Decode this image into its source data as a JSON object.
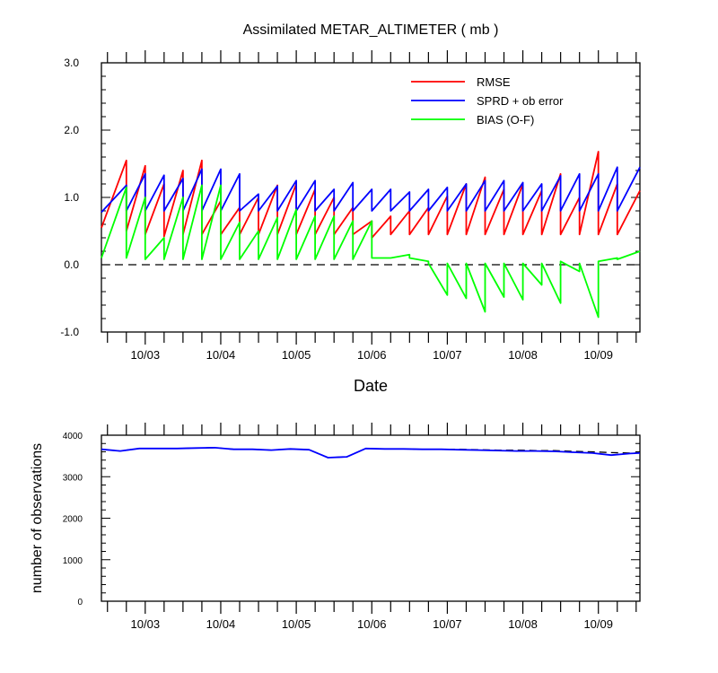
{
  "chart_data": [
    {
      "type": "line",
      "title": "Assimilated METAR_ALTIMETER ( mb )",
      "xlabel": "Date",
      "ylabel": "",
      "ylim": [
        -1.0,
        3.0
      ],
      "yticks": [
        -1.0,
        0.0,
        1.0,
        2.0,
        3.0
      ],
      "ytick_labels": [
        "-1.0",
        "0.0",
        "1.0",
        "2.0",
        "3.0"
      ],
      "xlim": [
        2.42,
        9.55
      ],
      "xticks": [
        3,
        4,
        5,
        6,
        7,
        8,
        9
      ],
      "xtick_labels": [
        "10/03",
        "10/04",
        "10/05",
        "10/06",
        "10/07",
        "10/08",
        "10/09"
      ],
      "reference_line": 0.0,
      "legend_position": "top-right",
      "series": [
        {
          "name": "RMSE",
          "color": "#ff0000",
          "x": [
            2.42,
            2.75,
            2.75,
            3.0,
            3.0,
            3.25,
            3.25,
            3.5,
            3.5,
            3.75,
            3.75,
            4.0,
            4.0,
            4.25,
            4.25,
            4.5,
            4.5,
            4.75,
            4.75,
            5.0,
            5.0,
            5.25,
            5.25,
            5.5,
            5.5,
            5.75,
            5.75,
            6.0,
            6.0,
            6.25,
            6.25,
            6.5,
            6.5,
            6.75,
            6.75,
            7.0,
            7.0,
            7.25,
            7.25,
            7.5,
            7.5,
            7.75,
            7.75,
            8.0,
            8.0,
            8.25,
            8.25,
            8.5,
            8.5,
            8.75,
            8.75,
            9.0,
            9.0,
            9.25,
            9.25,
            9.55
          ],
          "y": [
            0.55,
            1.55,
            0.5,
            1.47,
            0.45,
            1.2,
            0.42,
            1.4,
            0.45,
            1.55,
            0.45,
            0.95,
            0.45,
            0.85,
            0.45,
            1.0,
            0.45,
            1.18,
            0.45,
            1.2,
            0.45,
            1.12,
            0.45,
            1.0,
            0.45,
            0.85,
            0.45,
            0.65,
            0.4,
            0.72,
            0.45,
            0.8,
            0.45,
            0.85,
            0.45,
            1.02,
            0.45,
            1.2,
            0.45,
            1.3,
            0.45,
            1.12,
            0.45,
            1.2,
            0.45,
            1.1,
            0.45,
            1.35,
            0.45,
            1.0,
            0.45,
            1.68,
            0.45,
            1.2,
            0.45,
            1.1
          ]
        },
        {
          "name": "SPRD + ob error",
          "color": "#0000ff",
          "x": [
            2.42,
            2.75,
            2.75,
            3.0,
            3.0,
            3.25,
            3.25,
            3.5,
            3.5,
            3.75,
            3.75,
            4.0,
            4.0,
            4.25,
            4.25,
            4.5,
            4.5,
            4.75,
            4.75,
            5.0,
            5.0,
            5.25,
            5.25,
            5.5,
            5.5,
            5.75,
            5.75,
            6.0,
            6.0,
            6.25,
            6.25,
            6.5,
            6.5,
            6.75,
            6.75,
            7.0,
            7.0,
            7.25,
            7.25,
            7.5,
            7.5,
            7.75,
            7.75,
            8.0,
            8.0,
            8.25,
            8.25,
            8.5,
            8.5,
            8.75,
            8.75,
            9.0,
            9.0,
            9.25,
            9.25,
            9.55
          ],
          "y": [
            0.78,
            1.18,
            0.8,
            1.35,
            0.8,
            1.33,
            0.8,
            1.28,
            0.8,
            1.42,
            0.8,
            1.42,
            0.8,
            1.35,
            0.8,
            1.05,
            0.8,
            1.17,
            0.8,
            1.25,
            0.8,
            1.25,
            0.8,
            1.12,
            0.8,
            1.22,
            0.8,
            1.12,
            0.8,
            1.12,
            0.8,
            1.08,
            0.8,
            1.12,
            0.8,
            1.15,
            0.8,
            1.2,
            0.8,
            1.25,
            0.8,
            1.25,
            0.8,
            1.22,
            0.8,
            1.2,
            0.8,
            1.32,
            0.8,
            1.35,
            0.8,
            1.35,
            0.8,
            1.45,
            0.8,
            1.45
          ]
        },
        {
          "name": "BIAS (O-F)",
          "color": "#00ff00",
          "x": [
            2.42,
            2.75,
            2.75,
            3.0,
            3.0,
            3.25,
            3.25,
            3.5,
            3.5,
            3.75,
            3.75,
            4.0,
            4.0,
            4.25,
            4.25,
            4.5,
            4.5,
            4.75,
            4.75,
            5.0,
            5.0,
            5.25,
            5.25,
            5.5,
            5.5,
            5.75,
            5.75,
            6.0,
            6.0,
            6.25,
            6.25,
            6.5,
            6.5,
            6.75,
            6.75,
            7.0,
            7.0,
            7.25,
            7.25,
            7.5,
            7.5,
            7.75,
            7.75,
            8.0,
            8.0,
            8.25,
            8.25,
            8.5,
            8.5,
            8.75,
            8.75,
            9.0,
            9.0,
            9.25,
            9.25,
            9.55
          ],
          "y": [
            0.1,
            1.15,
            0.1,
            1.0,
            0.08,
            0.4,
            0.08,
            1.0,
            0.08,
            1.18,
            0.08,
            1.18,
            0.08,
            0.63,
            0.08,
            0.5,
            0.08,
            0.7,
            0.08,
            0.82,
            0.08,
            0.72,
            0.08,
            0.72,
            0.08,
            0.65,
            0.08,
            0.65,
            0.1,
            0.1,
            0.1,
            0.15,
            0.1,
            0.05,
            0.02,
            -0.45,
            0.02,
            -0.5,
            0.02,
            -0.7,
            0.02,
            -0.48,
            0.02,
            -0.52,
            0.02,
            -0.3,
            0.02,
            -0.57,
            0.05,
            -0.1,
            0.02,
            -0.78,
            0.05,
            0.1,
            0.08,
            0.2
          ]
        }
      ]
    },
    {
      "type": "line",
      "title": "",
      "xlabel": "",
      "ylabel": "number of observations",
      "ylim": [
        0,
        4000
      ],
      "yticks": [
        0,
        1000,
        2000,
        3000,
        4000
      ],
      "ytick_labels": [
        "0",
        "1000",
        "2000",
        "3000",
        "4000"
      ],
      "xlim": [
        2.42,
        9.55
      ],
      "xticks": [
        3,
        4,
        5,
        6,
        7,
        8,
        9
      ],
      "xtick_labels": [
        "10/03",
        "10/04",
        "10/05",
        "10/06",
        "10/07",
        "10/08",
        "10/09"
      ],
      "series": [
        {
          "color": "#000000",
          "style": "dashed",
          "x": [
            2.42,
            2.67,
            2.92,
            3.17,
            3.42,
            3.67,
            3.92,
            4.17,
            4.42,
            4.67,
            4.92,
            5.17,
            5.42,
            5.67,
            5.92,
            6.17,
            6.42,
            6.67,
            6.92,
            7.17,
            7.42,
            7.67,
            7.92,
            8.17,
            8.42,
            8.67,
            8.92,
            9.17,
            9.42,
            9.55
          ],
          "y": [
            3660,
            3620,
            3680,
            3680,
            3680,
            3690,
            3700,
            3660,
            3660,
            3640,
            3670,
            3650,
            3460,
            3480,
            3680,
            3670,
            3670,
            3660,
            3660,
            3660,
            3650,
            3640,
            3640,
            3630,
            3630,
            3610,
            3600,
            3580,
            3570,
            3570
          ]
        },
        {
          "color": "#0000ff",
          "style": "solid",
          "x": [
            2.42,
            2.67,
            2.92,
            3.17,
            3.42,
            3.67,
            3.92,
            4.17,
            4.42,
            4.67,
            4.92,
            5.17,
            5.42,
            5.67,
            5.92,
            6.17,
            6.42,
            6.67,
            6.92,
            7.17,
            7.42,
            7.67,
            7.92,
            8.17,
            8.42,
            8.67,
            8.92,
            9.17,
            9.42,
            9.55
          ],
          "y": [
            3660,
            3620,
            3680,
            3680,
            3680,
            3690,
            3700,
            3660,
            3660,
            3640,
            3670,
            3650,
            3460,
            3480,
            3680,
            3670,
            3670,
            3660,
            3660,
            3650,
            3640,
            3630,
            3620,
            3620,
            3610,
            3590,
            3570,
            3520,
            3560,
            3570
          ]
        }
      ]
    }
  ]
}
